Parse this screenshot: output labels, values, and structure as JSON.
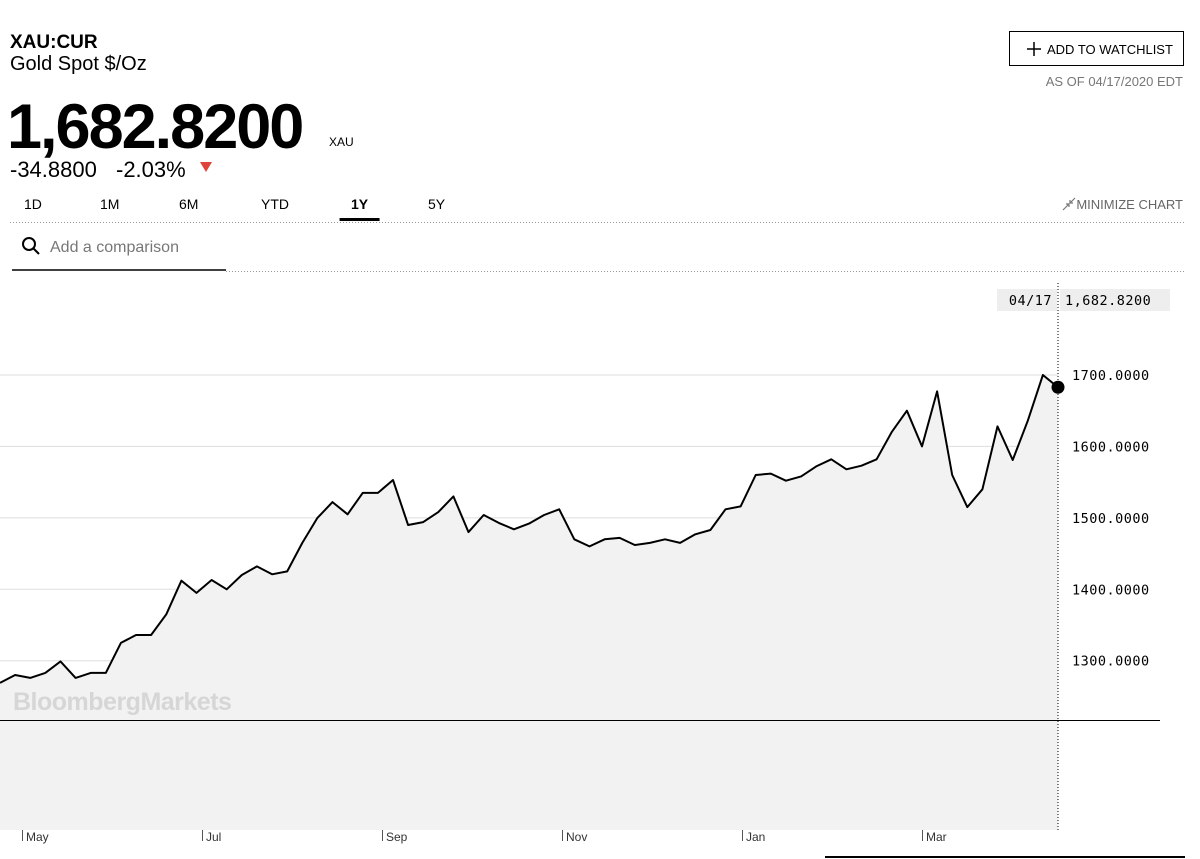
{
  "header": {
    "ticker": "XAU:CUR",
    "name": "Gold Spot $/Oz",
    "price": "1,682.8200",
    "currency": "XAU",
    "change": "-34.8800",
    "change_percent": "-2.03%",
    "watchlist_button": "ADD TO WATCHLIST",
    "as_of": "AS OF 04/17/2020 EDT"
  },
  "tabs": {
    "items": [
      "1D",
      "1M",
      "6M",
      "YTD",
      "1Y",
      "5Y"
    ],
    "active": 4
  },
  "minimize": "MINIMIZE CHART",
  "search_placeholder": "Add a comparison",
  "chart_data": {
    "type": "line",
    "watermark": "BloombergMarkets",
    "color": "#000000",
    "fill": "#f2f2f2",
    "x_labels": [
      "May",
      "Jul",
      "Sep",
      "Nov",
      "Jan",
      "Mar"
    ],
    "crosshair": {
      "date": "04/17",
      "value": "1,682.8200"
    },
    "values": [
      1269,
      1280,
      1276,
      1283,
      1299,
      1276,
      1283,
      1283,
      1325,
      1336,
      1336,
      1365,
      1412,
      1395,
      1413,
      1400,
      1420,
      1432,
      1421,
      1425,
      1465,
      1500,
      1522,
      1505,
      1535,
      1535,
      1553,
      1490,
      1494,
      1508,
      1530,
      1480,
      1504,
      1493,
      1484,
      1492,
      1504,
      1512,
      1470,
      1460,
      1470,
      1472,
      1462,
      1465,
      1470,
      1465,
      1477,
      1483,
      1512,
      1516,
      1560,
      1562,
      1552,
      1558,
      1572,
      1582,
      1568,
      1573,
      1582,
      1620,
      1650,
      1600,
      1677,
      1560,
      1515,
      1540,
      1628,
      1581,
      1636,
      1700,
      1682.82
    ],
    "ylim": [
      1217,
      1826
    ],
    "yticks": [
      {
        "value": 1300,
        "label": "1300.0000"
      },
      {
        "value": 1400,
        "label": "1400.0000"
      },
      {
        "value": 1500,
        "label": "1500.0000"
      },
      {
        "value": 1600,
        "label": "1600.0000"
      },
      {
        "value": 1700,
        "label": "1700.0000"
      }
    ],
    "grid": true
  }
}
